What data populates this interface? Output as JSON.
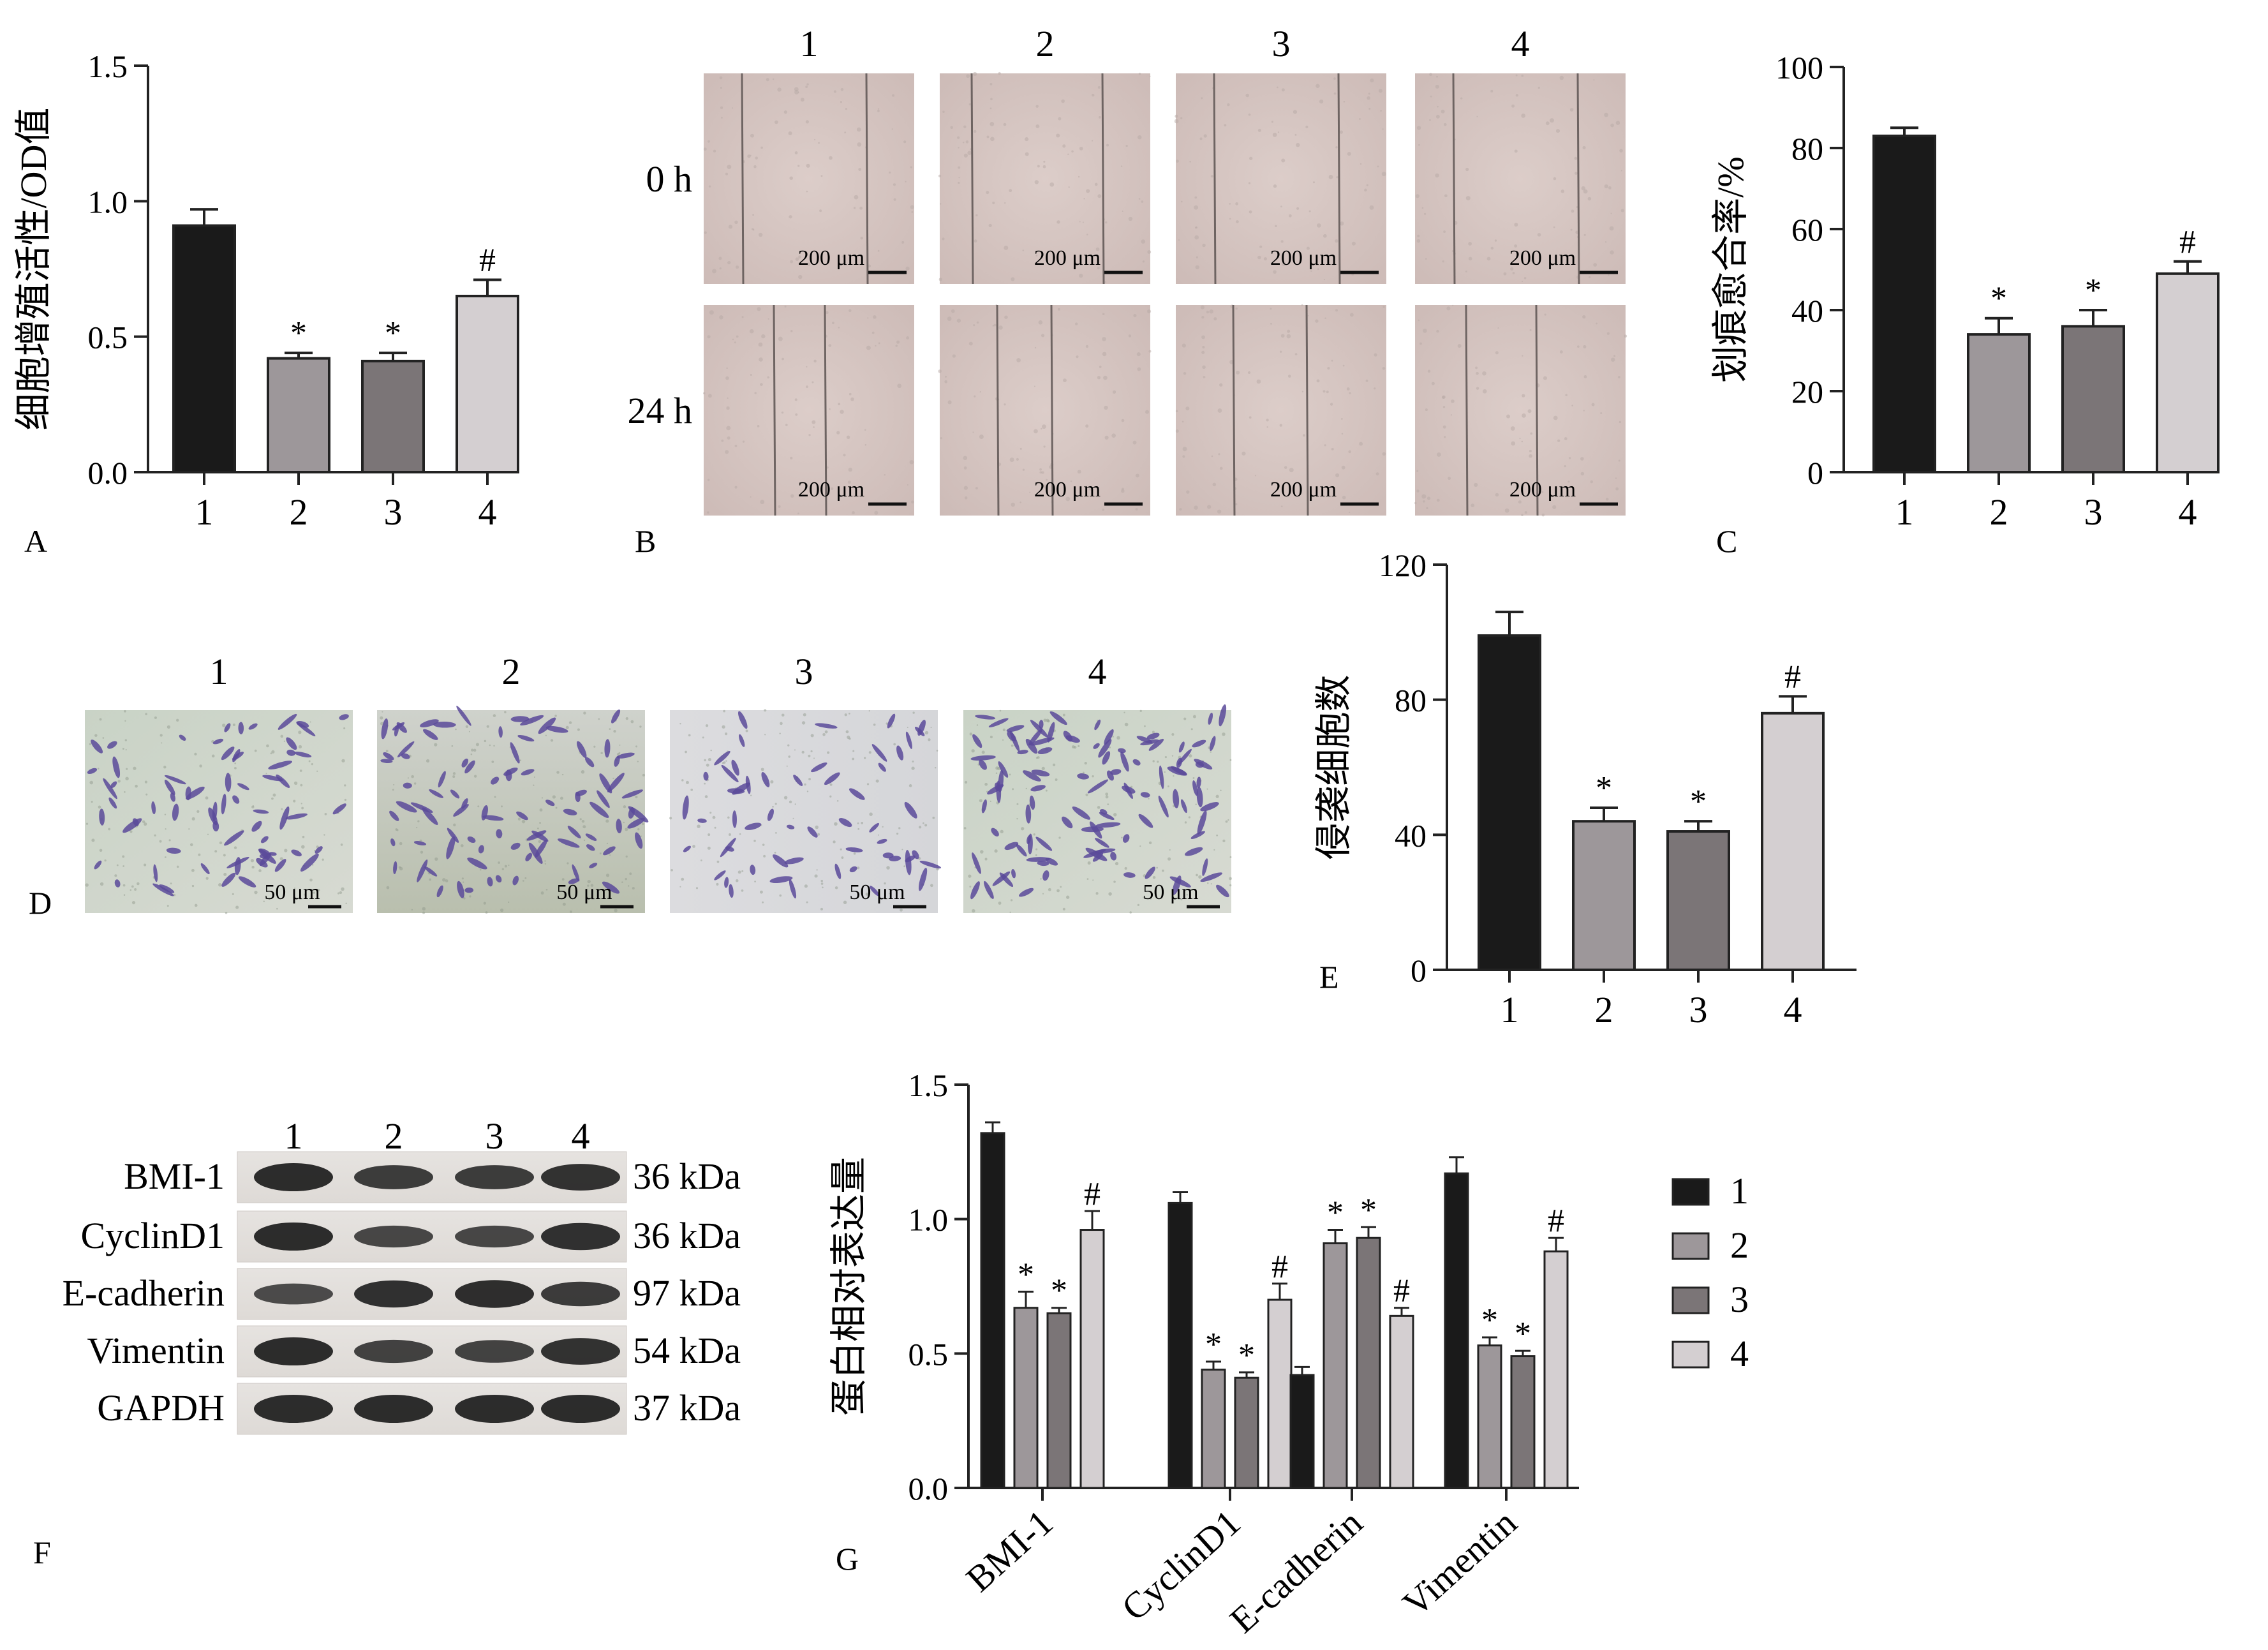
{
  "panels": {
    "A": "A",
    "B": "B",
    "C": "C",
    "D": "D",
    "E": "E",
    "F": "F",
    "G": "G"
  },
  "colors": {
    "g1": "#1a1a1a",
    "g2": "#9d979a",
    "g3": "#7b7577",
    "g4": "#d4cfd1",
    "scratch_bg": "#d8c6c2",
    "transwell_bg": "#cfd4cc",
    "stain": "#5a4a9a"
  },
  "panel_B": {
    "columns": [
      "1",
      "2",
      "3",
      "4"
    ],
    "rows": [
      "0 h",
      "24 h"
    ],
    "scale_bar": "200 μm"
  },
  "panel_D": {
    "columns": [
      "1",
      "2",
      "3",
      "4"
    ],
    "scale_bar": "50 μm"
  },
  "panel_F": {
    "lanes": [
      "1",
      "2",
      "3",
      "4"
    ],
    "bands": [
      {
        "name": "BMI-1",
        "size": "36 kDa"
      },
      {
        "name": "CyclinD1",
        "size": "36 kDa"
      },
      {
        "name": "E-cadherin",
        "size": "97 kDa"
      },
      {
        "name": "Vimentin",
        "size": "54 kDa"
      },
      {
        "name": "GAPDH",
        "size": "37 kDa"
      }
    ]
  },
  "chart_data": [
    {
      "panel": "A",
      "type": "bar",
      "ylabel": "细胞增殖活性/OD值",
      "categories": [
        "1",
        "2",
        "3",
        "4"
      ],
      "values": [
        0.91,
        0.42,
        0.41,
        0.65
      ],
      "errors": [
        0.06,
        0.02,
        0.03,
        0.06
      ],
      "annotations": [
        "",
        "*",
        "*",
        "#"
      ],
      "ylim": [
        0,
        1.5
      ],
      "yticks": [
        "0.0",
        "0.5",
        "1.0",
        "1.5"
      ]
    },
    {
      "panel": "C",
      "type": "bar",
      "ylabel": "划痕愈合率/%",
      "categories": [
        "1",
        "2",
        "3",
        "4"
      ],
      "values": [
        83,
        34,
        36,
        49
      ],
      "errors": [
        2,
        4,
        4,
        3
      ],
      "annotations": [
        "",
        "*",
        "*",
        "#"
      ],
      "ylim": [
        0,
        100
      ],
      "yticks": [
        "0",
        "20",
        "40",
        "60",
        "80",
        "100"
      ]
    },
    {
      "panel": "E",
      "type": "bar",
      "ylabel": "侵袭细胞数",
      "categories": [
        "1",
        "2",
        "3",
        "4"
      ],
      "values": [
        99,
        44,
        41,
        76
      ],
      "errors": [
        7,
        4,
        3,
        5
      ],
      "annotations": [
        "",
        "*",
        "*",
        "#"
      ],
      "ylim": [
        0,
        120
      ],
      "yticks": [
        "0",
        "40",
        "80",
        "120"
      ]
    },
    {
      "panel": "G",
      "type": "bar",
      "ylabel": "蛋白相对表达量",
      "categories": [
        "BMI-1",
        "CyclinD1",
        "E-cadherin",
        "Vimentin"
      ],
      "series": [
        {
          "name": "1",
          "values": [
            1.32,
            1.06,
            0.42,
            1.17
          ],
          "errors": [
            0.04,
            0.04,
            0.03,
            0.06
          ],
          "annotations": [
            "",
            "",
            "",
            ""
          ]
        },
        {
          "name": "2",
          "values": [
            0.67,
            0.44,
            0.91,
            0.53
          ],
          "errors": [
            0.06,
            0.03,
            0.05,
            0.03
          ],
          "annotations": [
            "*",
            "*",
            "*",
            "*"
          ]
        },
        {
          "name": "3",
          "values": [
            0.65,
            0.41,
            0.93,
            0.49
          ],
          "errors": [
            0.02,
            0.02,
            0.04,
            0.02
          ],
          "annotations": [
            "*",
            "*",
            "*",
            "*"
          ]
        },
        {
          "name": "4",
          "values": [
            0.96,
            0.7,
            0.64,
            0.88
          ],
          "errors": [
            0.07,
            0.06,
            0.03,
            0.05
          ],
          "annotations": [
            "#",
            "#",
            "#",
            "#"
          ]
        }
      ],
      "ylim": [
        0,
        1.5
      ],
      "yticks": [
        "0.0",
        "0.5",
        "1.0",
        "1.5"
      ],
      "legend": "right"
    }
  ]
}
